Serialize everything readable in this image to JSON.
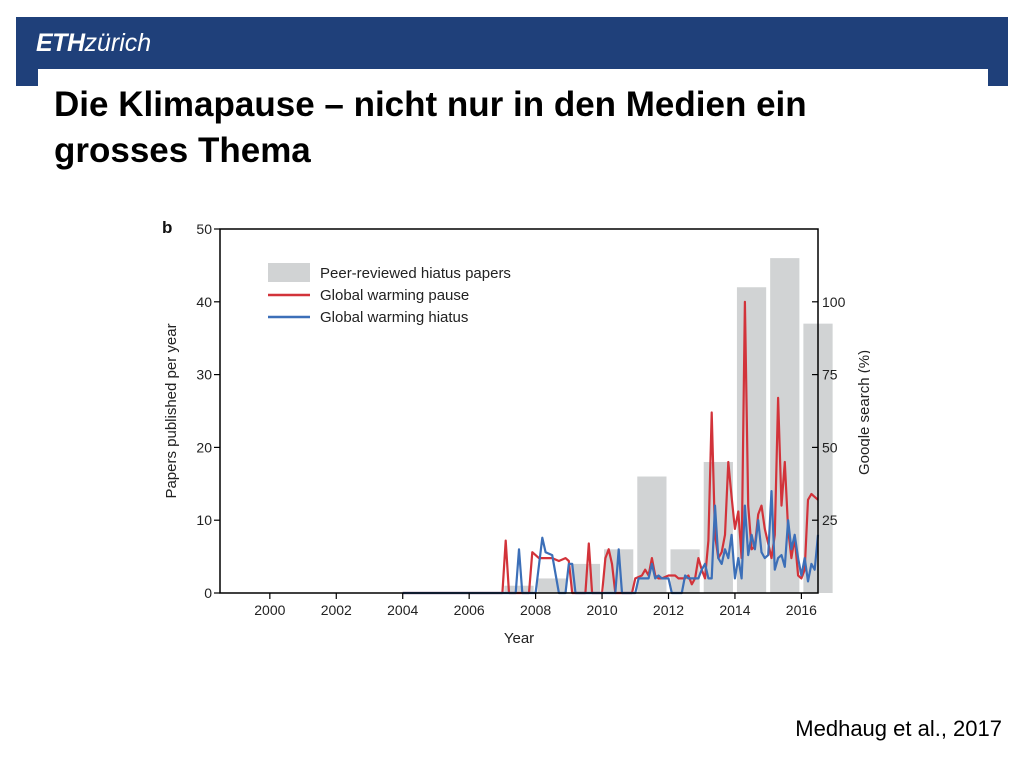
{
  "header": {
    "logo_strong": "ETH",
    "logo_light": "zürich"
  },
  "slide": {
    "title_line1": "Die Klimapause – nicht nur in den Medien ein",
    "title_line2": "grosses Thema",
    "citation": "Medhaug et al., 2017"
  },
  "colors": {
    "brand": "#1f407a",
    "bars": "#d1d3d4",
    "pause": "#d2333a",
    "hiatus": "#3c6fb8"
  },
  "chart_data": {
    "type": "bar",
    "panel_label": "b",
    "xlabel": "Year",
    "ylabel_left": "Papers published per year",
    "ylabel_right": "Google search (%)",
    "xlim": [
      1998.5,
      2016.5
    ],
    "xticks": [
      2000,
      2002,
      2004,
      2006,
      2008,
      2010,
      2012,
      2014,
      2016
    ],
    "ylim_left": [
      0,
      50
    ],
    "yticks_left": [
      0,
      10,
      20,
      30,
      40,
      50
    ],
    "ylim_right": [
      0,
      125
    ],
    "yticks_right": [
      25,
      50,
      75,
      100
    ],
    "legend": {
      "position": "top-left",
      "entries": [
        "Peer-reviewed hiatus papers",
        "Global warming pause",
        "Global warming hiatus"
      ]
    },
    "bars": {
      "name": "Peer-reviewed hiatus papers",
      "categories": [
        2007,
        2008,
        2009,
        2010,
        2011,
        2012,
        2013,
        2014,
        2015,
        2016
      ],
      "values": [
        1,
        2,
        4,
        6,
        16,
        6,
        18,
        42,
        46,
        37
      ]
    },
    "series": [
      {
        "name": "Global warming pause",
        "axis": "right",
        "x": [
          2004.0,
          2007.0,
          2007.1,
          2007.2,
          2007.3,
          2007.5,
          2007.6,
          2007.8,
          2007.9,
          2008.1,
          2008.2,
          2008.3,
          2008.5,
          2008.7,
          2008.9,
          2009.0,
          2009.1,
          2009.2,
          2009.3,
          2009.4,
          2009.5,
          2009.6,
          2009.7,
          2009.8,
          2009.9,
          2010.0,
          2010.1,
          2010.2,
          2010.3,
          2010.4,
          2010.5,
          2010.6,
          2010.8,
          2010.9,
          2011.0,
          2011.2,
          2011.3,
          2011.4,
          2011.5,
          2011.6,
          2011.7,
          2011.8,
          2012.0,
          2012.1,
          2012.2,
          2012.3,
          2012.5,
          2012.6,
          2012.7,
          2012.8,
          2012.9,
          2013.0,
          2013.1,
          2013.2,
          2013.3,
          2013.4,
          2013.5,
          2013.6,
          2013.7,
          2013.8,
          2013.9,
          2014.0,
          2014.1,
          2014.2,
          2014.3,
          2014.4,
          2014.5,
          2014.6,
          2014.7,
          2014.8,
          2014.9,
          2015.0,
          2015.1,
          2015.2,
          2015.3,
          2015.4,
          2015.5,
          2015.6,
          2015.7,
          2015.8,
          2015.9,
          2016.0,
          2016.1,
          2016.2,
          2016.3,
          2016.4,
          2016.5
        ],
        "y": [
          0,
          0,
          18,
          0,
          0,
          0,
          0,
          0,
          14,
          12,
          12,
          12,
          12,
          11,
          12,
          11,
          0,
          0,
          0,
          0,
          0,
          17,
          0,
          0,
          0,
          0,
          12,
          15,
          10,
          0,
          0,
          0,
          0,
          0,
          5,
          6,
          8,
          6,
          12,
          6,
          5,
          5,
          6,
          6,
          6,
          5,
          5,
          6,
          3,
          5,
          12,
          8,
          5,
          18,
          62,
          20,
          12,
          14,
          20,
          45,
          33,
          22,
          28,
          12,
          100,
          30,
          15,
          16,
          27,
          30,
          22,
          17,
          12,
          20,
          67,
          30,
          45,
          22,
          12,
          19,
          6,
          5,
          8,
          32,
          34,
          33,
          32
        ]
      },
      {
        "name": "Global warming hiatus",
        "axis": "right",
        "x": [
          2004.0,
          2007.0,
          2007.3,
          2007.4,
          2007.5,
          2007.6,
          2007.8,
          2008.0,
          2008.2,
          2008.3,
          2008.5,
          2008.7,
          2008.9,
          2009.0,
          2009.1,
          2009.2,
          2009.4,
          2009.6,
          2009.8,
          2010.0,
          2010.2,
          2010.4,
          2010.5,
          2010.6,
          2010.8,
          2011.0,
          2011.1,
          2011.2,
          2011.3,
          2011.4,
          2011.5,
          2011.6,
          2011.7,
          2011.8,
          2012.0,
          2012.1,
          2012.2,
          2012.3,
          2012.4,
          2012.5,
          2012.6,
          2012.7,
          2012.8,
          2012.9,
          2013.0,
          2013.1,
          2013.2,
          2013.3,
          2013.4,
          2013.5,
          2013.6,
          2013.7,
          2013.8,
          2013.9,
          2014.0,
          2014.1,
          2014.2,
          2014.3,
          2014.4,
          2014.5,
          2014.6,
          2014.7,
          2014.8,
          2014.9,
          2015.0,
          2015.1,
          2015.2,
          2015.3,
          2015.4,
          2015.5,
          2015.6,
          2015.7,
          2015.8,
          2015.9,
          2016.0,
          2016.1,
          2016.2,
          2016.3,
          2016.4,
          2016.5
        ],
        "y": [
          0,
          0,
          0,
          0,
          15,
          0,
          0,
          0,
          19,
          14,
          13,
          0,
          0,
          10,
          10,
          0,
          0,
          0,
          0,
          0,
          0,
          0,
          15,
          0,
          0,
          0,
          5,
          5,
          5,
          5,
          10,
          5,
          6,
          5,
          5,
          0,
          0,
          0,
          0,
          6,
          5,
          5,
          5,
          5,
          8,
          10,
          5,
          5,
          30,
          12,
          10,
          15,
          12,
          20,
          5,
          12,
          5,
          30,
          13,
          20,
          15,
          25,
          14,
          12,
          13,
          35,
          8,
          12,
          13,
          9,
          25,
          15,
          20,
          12,
          6,
          12,
          4,
          10,
          8,
          20
        ]
      }
    ]
  }
}
